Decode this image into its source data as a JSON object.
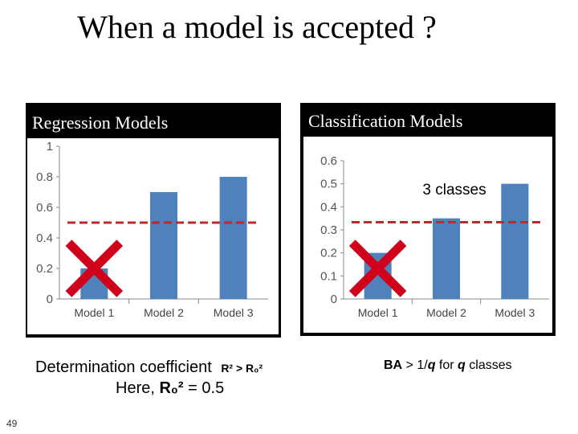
{
  "slide": {
    "title": "When a model is accepted ?",
    "number": "49"
  },
  "panels": {
    "regression": {
      "header": "Regression Models"
    },
    "classification": {
      "header": "Classification Models"
    }
  },
  "captions": {
    "regression_line1": "Determination coefficient",
    "regression_formula": "R² > R₀²",
    "regression_line2_prefix": "Here, ",
    "regression_line2_symbol": "R₀²",
    "regression_line2_suffix": " = 0.5",
    "classification_ba": "BA",
    "classification_mid": " > 1/",
    "classification_q": "q",
    "classification_for": " for ",
    "classification_q2": "q",
    "classification_suffix": " classes"
  },
  "chart_data": [
    {
      "type": "bar",
      "categories": [
        "Model 1",
        "Model 2",
        "Model 3"
      ],
      "values": [
        0.2,
        0.7,
        0.8
      ],
      "ylim": [
        0,
        1
      ],
      "yticks": [
        "0",
        "0.2",
        "0.4",
        "0.6",
        "0.8",
        "1"
      ],
      "threshold": 0.5,
      "rejected": [
        "Model 1"
      ],
      "bar_color": "#4f81bd",
      "threshold_color": "#c0282d",
      "reject_color": "#d0021b"
    },
    {
      "type": "bar",
      "categories": [
        "Model 1",
        "Model 2",
        "Model 3"
      ],
      "values": [
        0.2,
        0.35,
        0.5
      ],
      "ylim": [
        0,
        0.6
      ],
      "yticks": [
        "0",
        "0.1",
        "0.2",
        "0.3",
        "0.4",
        "0.5",
        "0.6"
      ],
      "threshold": 0.333,
      "annotation": "3 classes",
      "rejected": [
        "Model 1"
      ],
      "bar_color": "#4f81bd",
      "threshold_color": "#c0282d",
      "reject_color": "#d0021b"
    }
  ]
}
